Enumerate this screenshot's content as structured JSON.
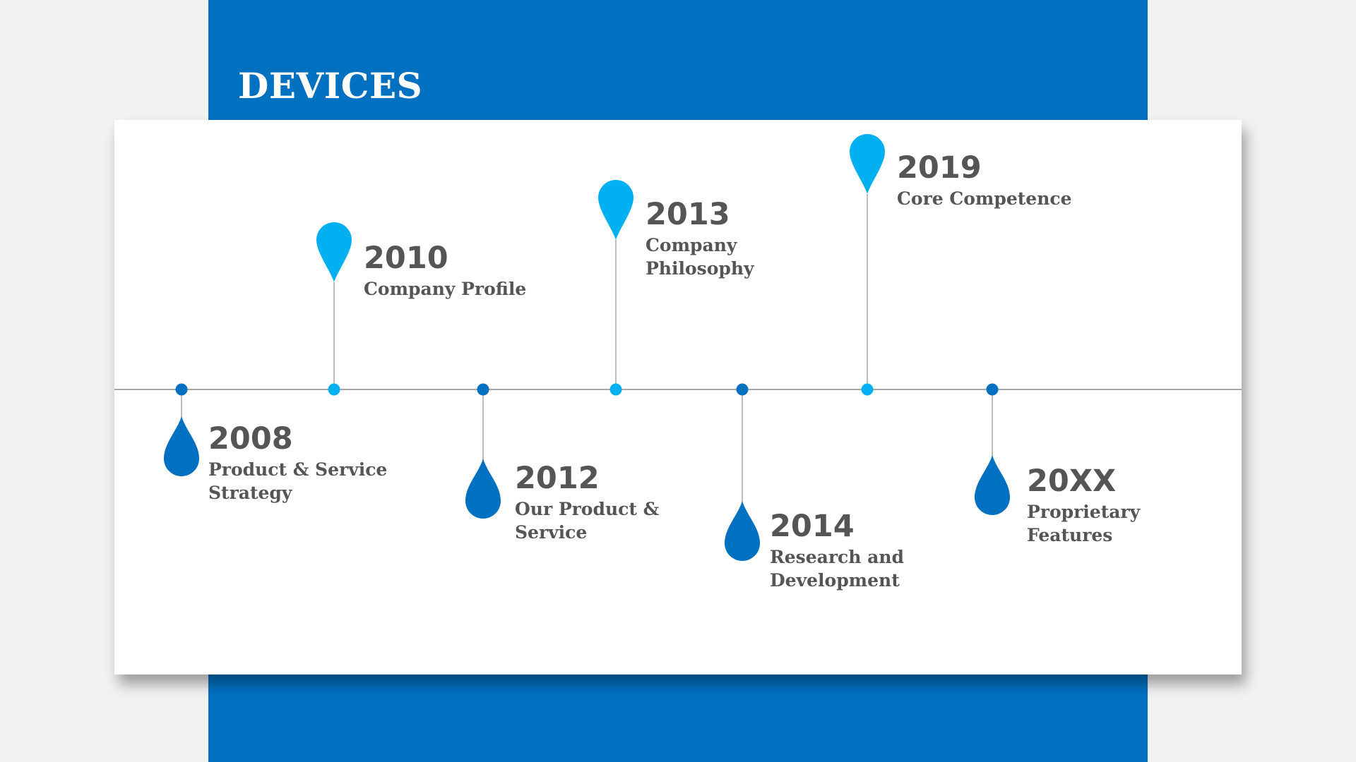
{
  "slide": {
    "title": "DEVICES"
  },
  "colors": {
    "background": "#f2f2f2",
    "band": "#0070c0",
    "card": "#ffffff",
    "dark_marker": "#0070c0",
    "light_marker": "#00b0f0",
    "text": "#555555",
    "line": "#a6a6a6"
  },
  "timeline": {
    "milestones": [
      {
        "year": "2008",
        "description": "Product & Service Strategy",
        "marker": "drop",
        "side": "below"
      },
      {
        "year": "2010",
        "description": "Company Profile",
        "marker": "pin",
        "side": "above"
      },
      {
        "year": "2012",
        "description": "Our Product & Service",
        "marker": "drop",
        "side": "below"
      },
      {
        "year": "2013",
        "description": "Company Philosophy",
        "marker": "pin",
        "side": "above"
      },
      {
        "year": "2014",
        "description": "Research and Development",
        "marker": "drop",
        "side": "below"
      },
      {
        "year": "2019",
        "description": "Core Competence",
        "marker": "pin",
        "side": "above"
      },
      {
        "year": "20XX",
        "description": "Proprietary Features",
        "marker": "drop",
        "side": "below"
      }
    ]
  }
}
